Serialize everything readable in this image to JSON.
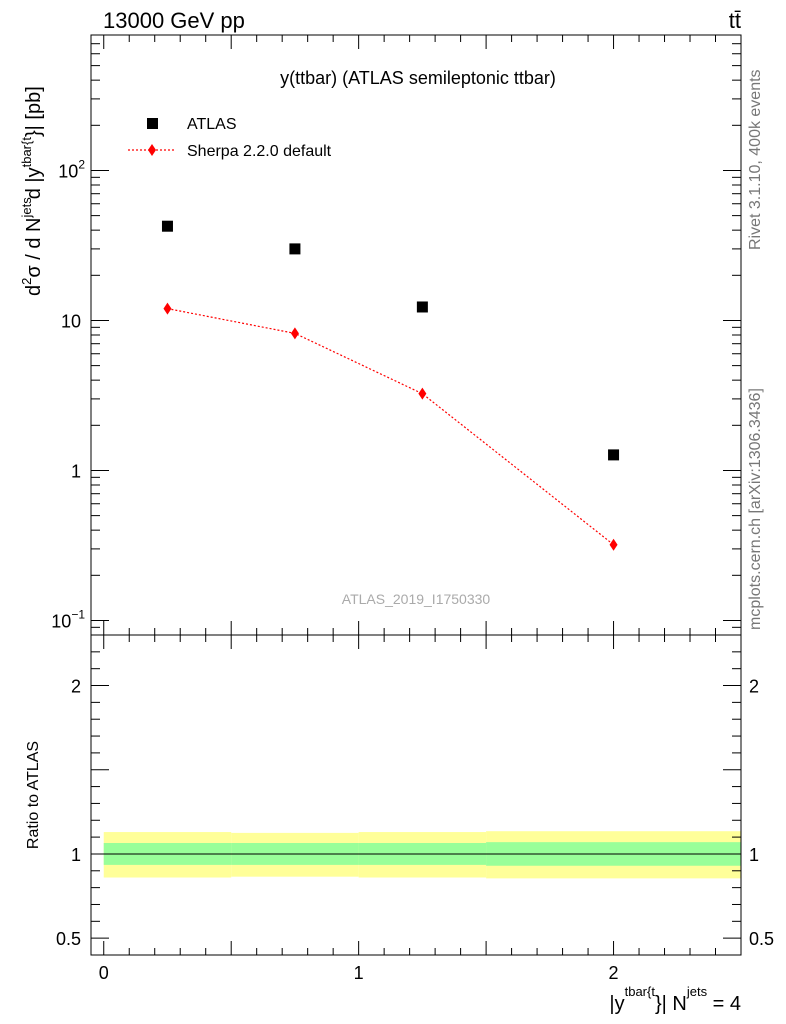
{
  "header": {
    "left": "13000 GeV pp",
    "right": "tt̄"
  },
  "side_labels": {
    "rivet": "Rivet 3.1.10,  400k events",
    "mcplots": "mcplots.cern.ch [arXiv:1306.3436]"
  },
  "chart_data": [
    {
      "type": "scatter",
      "title": "y(ttbar) (ATLAS semileptonic ttbar)",
      "watermark": "ATLAS_2019_I1750330",
      "ylabel": "d²σ / d N^jets d |y^tbar{t}| [pb]",
      "ylabel_parts": {
        "a": "d",
        "b": "2",
        "c": "σ / d N",
        "d": "jets",
        "e": "d |y",
        "f": "tbar{t",
        "g": "}| [pb]"
      },
      "yscale": "log",
      "ylim": [
        0.08,
        800
      ],
      "xlim": [
        -0.05,
        2.5
      ],
      "yticks": [
        {
          "value": 0.1,
          "base": "10",
          "exp": "−1"
        },
        {
          "value": 1,
          "label": "1"
        },
        {
          "value": 10,
          "label": "10"
        },
        {
          "value": 100,
          "base": "10",
          "exp": "2"
        }
      ],
      "legend_position": "top-left",
      "series": [
        {
          "name": "ATLAS",
          "marker": "square",
          "color": "#000000",
          "x": [
            0.25,
            0.75,
            1.25,
            2.0
          ],
          "y": [
            42.5,
            30.0,
            12.3,
            1.27
          ]
        },
        {
          "name": "Sherpa 2.2.0 default",
          "marker": "diamond",
          "line": "dotted",
          "color": "#ff0000",
          "x": [
            0.25,
            0.75,
            1.25,
            2.0
          ],
          "y": [
            12.0,
            8.2,
            3.25,
            0.32
          ]
        }
      ]
    },
    {
      "type": "area",
      "ylabel": "Ratio to ATLAS",
      "xlabel_parts": {
        "a": "|y",
        "b": "tbar{t",
        "c": "}| N",
        "d": "jets",
        "e": " = 4"
      },
      "xlim": [
        -0.05,
        2.5
      ],
      "ylim": [
        0.4,
        2.3
      ],
      "yticks": [
        {
          "value": 0.5,
          "label": "0.5"
        },
        {
          "value": 1,
          "label": "1"
        },
        {
          "value": 2,
          "label": "2"
        }
      ],
      "xticks": [
        {
          "value": 0,
          "label": "0"
        },
        {
          "value": 1,
          "label": "1"
        },
        {
          "value": 2,
          "label": "2"
        }
      ],
      "bins": [
        {
          "x_lo": 0.0,
          "x_hi": 0.5,
          "inner": [
            0.935,
            1.065
          ],
          "outer": [
            0.86,
            1.13
          ]
        },
        {
          "x_lo": 0.5,
          "x_hi": 1.0,
          "inner": [
            0.935,
            1.065
          ],
          "outer": [
            0.865,
            1.125
          ]
        },
        {
          "x_lo": 1.0,
          "x_hi": 1.5,
          "inner": [
            0.935,
            1.065
          ],
          "outer": [
            0.86,
            1.13
          ]
        },
        {
          "x_lo": 1.5,
          "x_hi": 2.5,
          "inner": [
            0.93,
            1.07
          ],
          "outer": [
            0.855,
            1.135
          ]
        }
      ],
      "colors": {
        "inner": "#99ff99",
        "outer": "#ffff99",
        "line": "#000000"
      }
    }
  ]
}
